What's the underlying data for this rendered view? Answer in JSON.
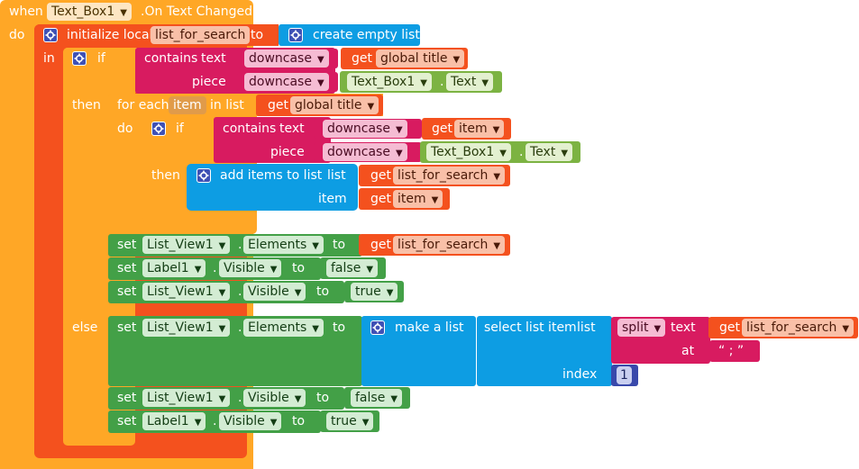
{
  "event": {
    "when_label": "when",
    "component": "Text_Box1",
    "event_name": ".On Text Changed",
    "do_label": "do"
  },
  "init_local": {
    "label": "initialize local",
    "var_name": "list_for_search",
    "to_label": "to",
    "in_label": "in",
    "value_label": "create empty list"
  },
  "if_outer": {
    "if_label": "if",
    "then_label": "then",
    "else_label": "else",
    "contains_label": "contains",
    "text_label": "text",
    "piece_label": "piece",
    "downcase_label": "downcase",
    "get_label": "get",
    "global_var": "global title",
    "piece_component": "Text_Box1",
    "piece_property": "Text"
  },
  "for_each": {
    "label": "for each",
    "var_name": "item",
    "in_list_label": "in list",
    "do_label": "do",
    "list_get": "get",
    "list_var": "global title",
    "inner_if": {
      "if_label": "if",
      "then_label": "then",
      "contains_label": "contains",
      "text_label": "text",
      "piece_label": "piece",
      "downcase_label": "downcase",
      "get_label": "get",
      "text_var": "item",
      "piece_component": "Text_Box1",
      "piece_property": "Text",
      "add_items": {
        "label": "add items to list",
        "list_label": "list",
        "item_label": "item",
        "get_label": "get",
        "list_var": "list_for_search",
        "item_var": "item"
      }
    }
  },
  "then_sets": [
    {
      "set_label": "set",
      "component": "List_View1",
      "property": "Elements",
      "to_label": "to",
      "value_type": "get",
      "get_label": "get",
      "value": "list_for_search"
    },
    {
      "set_label": "set",
      "component": "Label1",
      "property": "Visible",
      "to_label": "to",
      "value_type": "bool",
      "value": "false"
    },
    {
      "set_label": "set",
      "component": "List_View1",
      "property": "Visible",
      "to_label": "to",
      "value_type": "bool",
      "value": "true"
    }
  ],
  "else_block": {
    "set_label": "set",
    "component": "List_View1",
    "property": "Elements",
    "to_label": "to",
    "make_list_label": "make a list",
    "select_label": "select list item",
    "list_label": "list",
    "index_label": "index",
    "index_value": "1",
    "split_label": "split",
    "split_text_label": "text",
    "at_label": "at",
    "split_get": "get",
    "split_var": "list_for_search",
    "at_value": "“ ; ”"
  },
  "else_sets": [
    {
      "set_label": "set",
      "component": "List_View1",
      "property": "Visible",
      "to_label": "to",
      "value": "false"
    },
    {
      "set_label": "set",
      "component": "Label1",
      "property": "Visible",
      "to_label": "to",
      "value": "true"
    }
  ],
  "colors": {
    "event": "#ffa726",
    "variables": "#f4511e",
    "control": "#ffa726",
    "text": "#d81b60",
    "lists": "#0d9de3",
    "components": "#43a047",
    "component_getter": "#7cb342",
    "math": "#3949ab",
    "logic": "#43a047"
  }
}
